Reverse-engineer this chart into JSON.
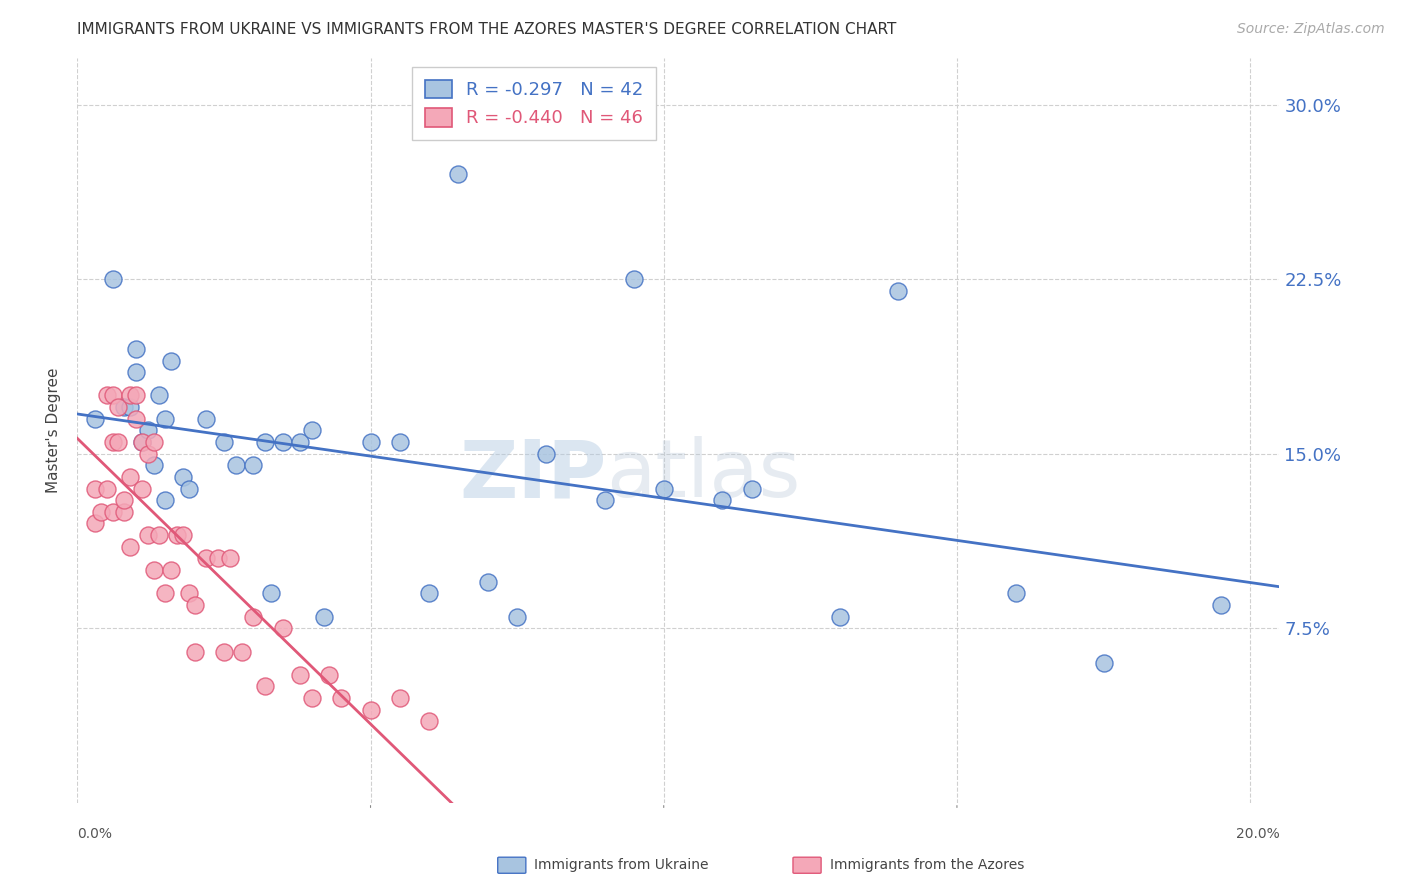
{
  "title": "IMMIGRANTS FROM UKRAINE VS IMMIGRANTS FROM THE AZORES MASTER'S DEGREE CORRELATION CHART",
  "source": "Source: ZipAtlas.com",
  "ylabel": "Master's Degree",
  "ytick_values": [
    0.075,
    0.15,
    0.225,
    0.3
  ],
  "ytick_labels": [
    "7.5%",
    "15.0%",
    "22.5%",
    "30.0%"
  ],
  "xtick_values": [
    0.0,
    0.05,
    0.1,
    0.15,
    0.2
  ],
  "xlim": [
    0.0,
    0.205
  ],
  "ylim": [
    0.0,
    0.32
  ],
  "ukraine_color": "#a8c4e0",
  "azores_color": "#f4a8b8",
  "ukraine_edge_color": "#4472c4",
  "azores_edge_color": "#e05878",
  "ukraine_R": -0.297,
  "ukraine_N": 42,
  "azores_R": -0.44,
  "azores_N": 46,
  "ukraine_x": [
    0.003,
    0.006,
    0.008,
    0.009,
    0.01,
    0.01,
    0.011,
    0.012,
    0.013,
    0.014,
    0.015,
    0.015,
    0.016,
    0.018,
    0.019,
    0.022,
    0.025,
    0.027,
    0.03,
    0.032,
    0.033,
    0.035,
    0.038,
    0.04,
    0.042,
    0.05,
    0.055,
    0.06,
    0.065,
    0.07,
    0.075,
    0.08,
    0.09,
    0.095,
    0.1,
    0.11,
    0.115,
    0.13,
    0.14,
    0.16,
    0.175,
    0.195
  ],
  "ukraine_y": [
    0.165,
    0.225,
    0.17,
    0.17,
    0.195,
    0.185,
    0.155,
    0.16,
    0.145,
    0.175,
    0.165,
    0.13,
    0.19,
    0.14,
    0.135,
    0.165,
    0.155,
    0.145,
    0.145,
    0.155,
    0.09,
    0.155,
    0.155,
    0.16,
    0.08,
    0.155,
    0.155,
    0.09,
    0.27,
    0.095,
    0.08,
    0.15,
    0.13,
    0.225,
    0.135,
    0.13,
    0.135,
    0.08,
    0.22,
    0.09,
    0.06,
    0.085
  ],
  "azores_x": [
    0.003,
    0.003,
    0.004,
    0.005,
    0.005,
    0.006,
    0.006,
    0.006,
    0.007,
    0.007,
    0.008,
    0.008,
    0.009,
    0.009,
    0.009,
    0.01,
    0.01,
    0.011,
    0.011,
    0.012,
    0.012,
    0.013,
    0.013,
    0.014,
    0.015,
    0.016,
    0.017,
    0.018,
    0.019,
    0.02,
    0.02,
    0.022,
    0.024,
    0.025,
    0.026,
    0.028,
    0.03,
    0.032,
    0.035,
    0.038,
    0.04,
    0.043,
    0.045,
    0.05,
    0.055,
    0.06
  ],
  "azores_y": [
    0.135,
    0.12,
    0.125,
    0.135,
    0.175,
    0.155,
    0.175,
    0.125,
    0.17,
    0.155,
    0.125,
    0.13,
    0.175,
    0.14,
    0.11,
    0.175,
    0.165,
    0.155,
    0.135,
    0.15,
    0.115,
    0.155,
    0.1,
    0.115,
    0.09,
    0.1,
    0.115,
    0.115,
    0.09,
    0.065,
    0.085,
    0.105,
    0.105,
    0.065,
    0.105,
    0.065,
    0.08,
    0.05,
    0.075,
    0.055,
    0.045,
    0.055,
    0.045,
    0.04,
    0.045,
    0.035
  ],
  "watermark_zip": "ZIP",
  "watermark_atlas": "atlas",
  "background_color": "#ffffff",
  "grid_color": "#d0d0d0",
  "title_fontsize": 11,
  "source_fontsize": 10,
  "ytick_fontsize": 13,
  "ylabel_fontsize": 11,
  "legend_fontsize": 13
}
